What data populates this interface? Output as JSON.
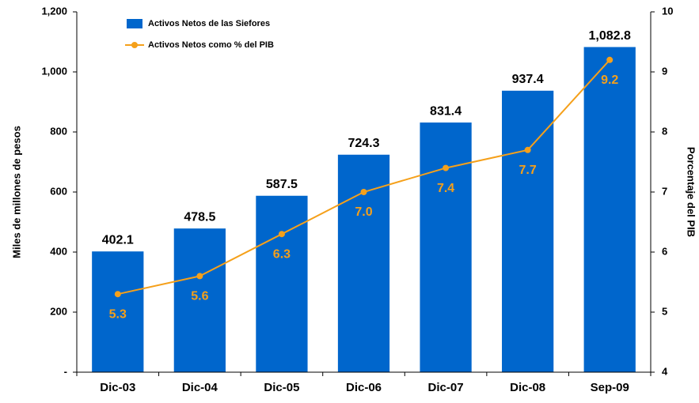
{
  "chart_data": {
    "type": "bar",
    "categories": [
      "Dic-03",
      "Dic-04",
      "Dic-05",
      "Dic-06",
      "Dic-07",
      "Dic-08",
      "Sep-09"
    ],
    "series": [
      {
        "name": "Activos Netos de las Siefores",
        "color": "#0066cc",
        "type": "bar",
        "values": [
          402.1,
          478.5,
          587.5,
          724.3,
          831.4,
          937.4,
          1082.8
        ],
        "value_labels": [
          "402.1",
          "478.5",
          "587.5",
          "724.3",
          "831.4",
          "937.4",
          "1,082.8"
        ]
      },
      {
        "name": "Activos Netos como % del PIB",
        "color": "#f5a01a",
        "type": "line",
        "axis": "y2",
        "values": [
          5.3,
          5.6,
          6.3,
          7.0,
          7.4,
          7.7,
          9.2
        ],
        "value_labels": [
          "5.3",
          "5.6",
          "6.3",
          "7.0",
          "7.4",
          "7.7",
          "9.2"
        ]
      }
    ],
    "ylabel": "Miles de millones de pesos",
    "y2label": "Porcentaje del PIB",
    "ylim": [
      0,
      1200
    ],
    "yticks": [
      {
        "value": 0,
        "label": "-"
      },
      200,
      400,
      600,
      800,
      {
        "value": 1000,
        "label": "1,000"
      },
      {
        "value": 1200,
        "label": "1,200"
      }
    ],
    "y2lim": [
      4,
      10
    ],
    "y2ticks": [
      4,
      5,
      6,
      7,
      8,
      9,
      10
    ],
    "legend": "upper left"
  }
}
